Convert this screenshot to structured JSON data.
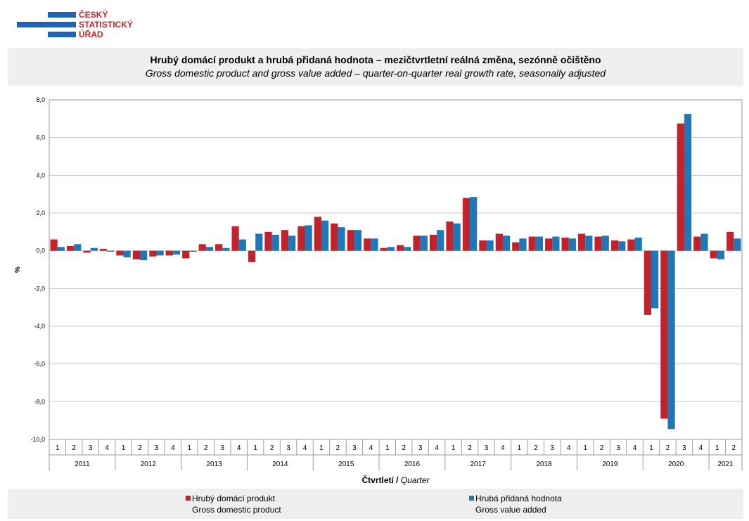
{
  "header": {
    "logo_lines": [
      "ČESKÝ",
      "STATISTICKÝ",
      "ÚŘAD"
    ],
    "title_cz": "Hrubý domácí produkt a hrubá přidaná hodnota – mezičtvrtletní reálná změna, sezónně očištěno",
    "title_en": "Gross domestic product and gross value added – quarter-on-quarter real growth rate, seasonally adjusted"
  },
  "colors": {
    "gdp": "#c0232b",
    "gva": "#1f77b8",
    "grid": "#c8c8c8",
    "logo": "#1e63b4"
  },
  "chart_data": {
    "type": "bar",
    "ylabel": "%",
    "xlabel_cz": "Čtvrtletí /",
    "xlabel_en": "Quarter",
    "ylim": [
      -10,
      8
    ],
    "yticks": [
      8,
      6,
      4,
      2,
      0,
      -2,
      -4,
      -6,
      -8,
      -10
    ],
    "ytick_labels": [
      "8,0",
      "6,0",
      "4,0",
      "2,0",
      "0,0",
      "-2,0",
      "-4,0",
      "-6,0",
      "-8,0",
      "-10,0"
    ],
    "grid": true,
    "years": [
      "2011",
      "2012",
      "2013",
      "2014",
      "2015",
      "2016",
      "2017",
      "2018",
      "2019",
      "2020",
      "2021"
    ],
    "quarters": [
      "1",
      "2",
      "3",
      "4",
      "1",
      "2",
      "3",
      "4",
      "1",
      "2",
      "3",
      "4",
      "1",
      "2",
      "3",
      "4",
      "1",
      "2",
      "3",
      "4",
      "1",
      "2",
      "3",
      "4",
      "1",
      "2",
      "3",
      "4",
      "1",
      "2",
      "3",
      "4",
      "1",
      "2",
      "3",
      "4",
      "1",
      "2",
      "3",
      "4",
      "1",
      "2"
    ],
    "series": [
      {
        "name": "Hrubý domácí produkt",
        "name_en": "Gross domestic product",
        "values": [
          0.6,
          0.25,
          -0.1,
          0.1,
          -0.25,
          -0.45,
          -0.3,
          -0.25,
          -0.4,
          0.35,
          0.35,
          1.3,
          -0.6,
          1.0,
          1.1,
          1.3,
          1.8,
          1.45,
          1.1,
          0.65,
          0.15,
          0.3,
          0.8,
          0.85,
          1.55,
          2.8,
          0.55,
          0.9,
          0.45,
          0.75,
          0.65,
          0.7,
          0.9,
          0.75,
          0.55,
          0.6,
          -3.4,
          -8.9,
          6.75,
          0.75,
          -0.4,
          1.0
        ]
      },
      {
        "name": "Hrubá přidaná hodnota",
        "name_en": "Gross value added",
        "values": [
          0.2,
          0.35,
          0.15,
          -0.05,
          -0.35,
          -0.5,
          -0.25,
          -0.2,
          -0.05,
          0.2,
          0.15,
          0.6,
          0.9,
          0.85,
          0.8,
          1.35,
          1.6,
          1.25,
          1.1,
          0.65,
          0.2,
          0.2,
          0.8,
          1.1,
          1.45,
          2.85,
          0.55,
          0.8,
          0.65,
          0.75,
          0.75,
          0.65,
          0.8,
          0.8,
          0.5,
          0.7,
          -3.05,
          -9.45,
          7.25,
          0.9,
          -0.45,
          0.65
        ]
      }
    ]
  }
}
